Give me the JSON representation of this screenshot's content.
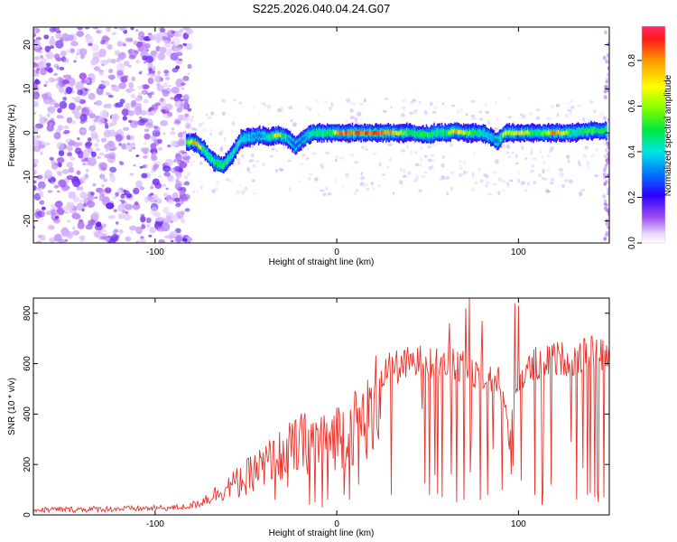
{
  "chart_data": [
    {
      "type": "heatmap",
      "title": "S225.2026.040.04.24.G07",
      "xlabel": "Height of straight line (km)",
      "ylabel": "Frequency (Hz)",
      "xlim": [
        -167,
        150
      ],
      "ylim": [
        -25,
        24
      ],
      "xticks": [
        -100,
        0,
        100
      ],
      "xtick_labels": [
        "-100",
        "0",
        "100"
      ],
      "yticks": [
        20,
        10,
        0,
        -10,
        -20
      ],
      "ytick_labels": [
        "20",
        "10",
        "0",
        "-10",
        "-20"
      ],
      "noise_region_x": [
        -167,
        -81
      ],
      "ridge_x": [
        -83,
        -78,
        -73,
        -68,
        -63,
        -58,
        -53,
        -48,
        -43,
        -38,
        -33,
        -28,
        -23,
        -18,
        -13,
        -8,
        -3,
        0,
        10,
        20,
        30,
        40,
        50,
        55,
        60,
        65,
        70,
        75,
        80,
        85,
        88,
        92,
        95,
        100,
        110,
        120,
        130,
        140,
        148
      ],
      "ridge_freq": [
        -2,
        -2.2,
        -4,
        -6.5,
        -7.5,
        -5,
        -1.5,
        -1,
        -0.5,
        -1,
        -0.5,
        -1,
        -3,
        -1,
        0,
        0,
        0,
        0,
        0,
        0,
        0,
        0,
        -0.5,
        0,
        0,
        0.5,
        0,
        0,
        0,
        -1,
        -2,
        0,
        0,
        0,
        0,
        0,
        0,
        0.5,
        0.5
      ],
      "ridge_amplitude": [
        0.6,
        0.95,
        0.5,
        0.5,
        0.6,
        0.45,
        0.45,
        0.4,
        0.35,
        0.45,
        0.85,
        0.4,
        0.3,
        0.35,
        0.55,
        0.5,
        0.6,
        0.95,
        0.95,
        0.95,
        0.9,
        0.55,
        0.6,
        0.5,
        0.55,
        0.9,
        0.7,
        0.6,
        0.45,
        0.4,
        0.3,
        0.8,
        0.7,
        0.85,
        0.5,
        0.95,
        0.5,
        0.6,
        0.55
      ],
      "colorbar": {
        "label": "Normalized spectral amplitude",
        "range": [
          0,
          0.95
        ],
        "ticks": [
          "0.0",
          "0.2",
          "0.4",
          "0.6",
          "0.8"
        ],
        "tick_values": [
          0,
          0.2,
          0.4,
          0.6,
          0.8
        ]
      }
    },
    {
      "type": "line",
      "xlabel": "Height of straight line (km)",
      "ylabel": "SNR (10 * v/v)",
      "xlim": [
        -167,
        150
      ],
      "ylim": [
        0,
        860
      ],
      "xticks": [
        -100,
        0,
        100
      ],
      "xtick_labels": [
        "-100",
        "0",
        "100"
      ],
      "yticks": [
        0,
        200,
        400,
        600,
        800
      ],
      "ytick_labels": [
        "0",
        "200",
        "400",
        "600",
        "800"
      ],
      "color": "#e8322a",
      "trend_x": [
        -167,
        -140,
        -110,
        -90,
        -80,
        -70,
        -60,
        -50,
        -40,
        -30,
        -20,
        -10,
        0,
        10,
        20,
        25,
        30,
        40,
        50,
        60,
        70,
        80,
        90,
        95,
        100,
        110,
        120,
        130,
        140,
        150
      ],
      "trend_y": [
        20,
        22,
        25,
        28,
        35,
        70,
        110,
        150,
        200,
        240,
        280,
        300,
        320,
        350,
        400,
        560,
        580,
        600,
        610,
        600,
        580,
        560,
        540,
        300,
        540,
        600,
        620,
        620,
        640,
        630
      ],
      "dips_x": [
        -54,
        -50,
        -40,
        -34,
        -31,
        -27,
        -22,
        -15,
        -12,
        -8,
        -5,
        4,
        7,
        12,
        20,
        30,
        47,
        51,
        58,
        63,
        66,
        70,
        74,
        79,
        86,
        91,
        96,
        109,
        113,
        118,
        129,
        132,
        138,
        142,
        144,
        147
      ],
      "dips_y": [
        70,
        80,
        120,
        60,
        140,
        110,
        180,
        40,
        50,
        30,
        60,
        80,
        60,
        120,
        260,
        80,
        420,
        80,
        70,
        160,
        50,
        60,
        300,
        60,
        260,
        100,
        160,
        80,
        40,
        120,
        290,
        60,
        80,
        70,
        50,
        70
      ],
      "peaks_x": [
        62,
        71,
        73,
        80,
        98,
        100
      ],
      "peaks_y": [
        760,
        820,
        860,
        770,
        840,
        830
      ]
    }
  ]
}
